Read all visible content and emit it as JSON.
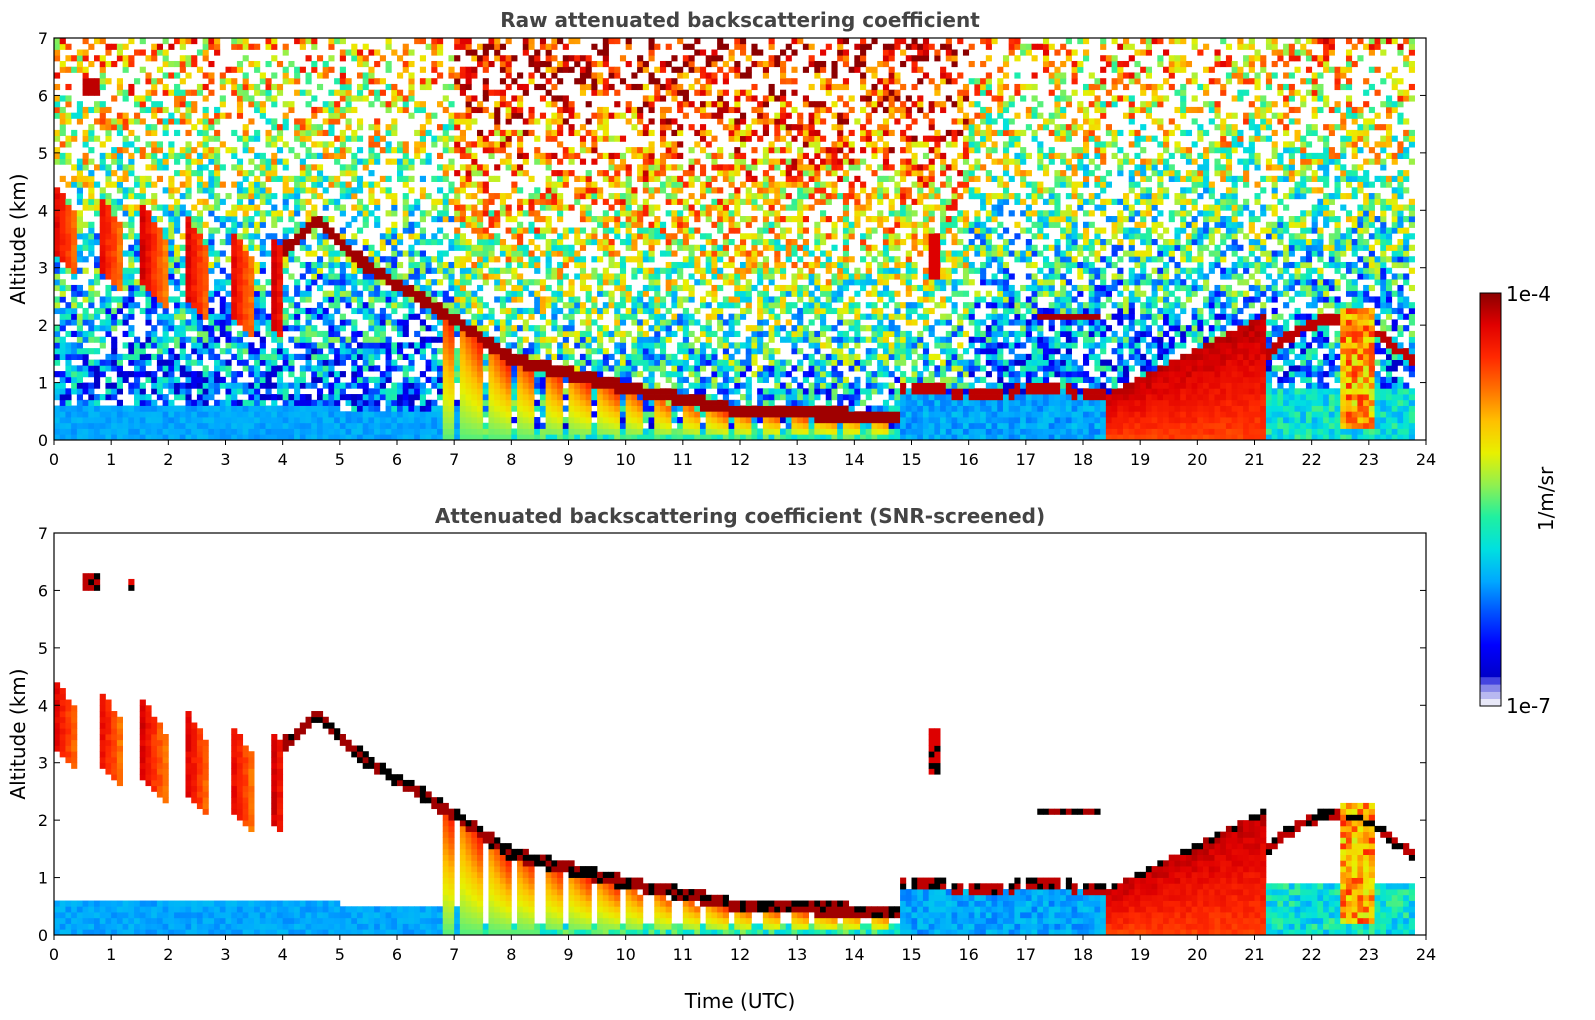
{
  "colors": {
    "colormap": [
      "#0000c8",
      "#0000ff",
      "#0050ff",
      "#00a8ff",
      "#00e0e0",
      "#20f0a0",
      "#90f050",
      "#e8f000",
      "#ffc000",
      "#ff7000",
      "#ff2800",
      "#e00000",
      "#8c0000"
    ],
    "low_fade": [
      "#e8e8f8",
      "#b8b8f0",
      "#8888e8",
      "#4444e0"
    ],
    "cloud_top_mark": "#000000"
  },
  "chart_data": [
    {
      "type": "heatmap",
      "title": "Raw attenuated backscattering coefficient",
      "xlabel": "",
      "ylabel": "Altitude (km)",
      "xlim": [
        0,
        24
      ],
      "ylim": [
        0,
        7
      ],
      "x_ticks": [
        "0",
        "1",
        "2",
        "3",
        "4",
        "5",
        "6",
        "7",
        "8",
        "9",
        "10",
        "11",
        "12",
        "13",
        "14",
        "15",
        "16",
        "17",
        "18",
        "19",
        "20",
        "21",
        "22",
        "23",
        "24"
      ],
      "y_ticks": [
        "0",
        "1",
        "2",
        "3",
        "4",
        "5",
        "6",
        "7"
      ],
      "features": [
        {
          "kind": "noise_background",
          "x_range": [
            0,
            23.8
          ],
          "y_range": [
            0,
            7
          ]
        },
        {
          "kind": "boundary_layer",
          "x_range": [
            0,
            7.3
          ],
          "top_km": 0.6
        },
        {
          "kind": "cloud_streaks",
          "x_range": [
            0,
            4
          ],
          "top_km": [
            4.5,
            3.5
          ],
          "base_km": [
            3.2,
            1.8
          ]
        },
        {
          "kind": "descending_cloud_layer",
          "points": [
            [
              4,
              3.3
            ],
            [
              4.6,
              3.8
            ],
            [
              5.5,
              3.0
            ],
            [
              7,
              2.1
            ],
            [
              8,
              1.4
            ],
            [
              10,
              0.9
            ],
            [
              12,
              0.5
            ],
            [
              14.7,
              0.4
            ]
          ]
        },
        {
          "kind": "cloud_layer",
          "x_range": [
            14.8,
            18.4
          ],
          "height_km": 0.9
        },
        {
          "kind": "cloud_layer",
          "x_range": [
            17.2,
            18.3
          ],
          "height_km": 2.15
        },
        {
          "kind": "precipitation",
          "x_range": [
            18.4,
            21.2
          ],
          "top_km": [
            0.8,
            2.2
          ]
        },
        {
          "kind": "cloud_layer",
          "x_range": [
            21.2,
            23.8
          ],
          "height_km": [
            1.5,
            2.3
          ]
        }
      ]
    },
    {
      "type": "heatmap",
      "title": "Attenuated backscattering coefficient (SNR-screened)",
      "xlabel": "Time (UTC)",
      "ylabel": "Altitude (km)",
      "xlim": [
        0,
        24
      ],
      "ylim": [
        0,
        7
      ],
      "x_ticks": [
        "0",
        "1",
        "2",
        "3",
        "4",
        "5",
        "6",
        "7",
        "8",
        "9",
        "10",
        "11",
        "12",
        "13",
        "14",
        "15",
        "16",
        "17",
        "18",
        "19",
        "20",
        "21",
        "22",
        "23",
        "24"
      ],
      "y_ticks": [
        "0",
        "1",
        "2",
        "3",
        "4",
        "5",
        "6",
        "7"
      ],
      "screened": true
    }
  ],
  "colorbar": {
    "max_label": "1e-4",
    "min_label": "1e-7",
    "unit_label": "1/m/sr",
    "vmin": 1e-07,
    "vmax": 0.0001,
    "scale": "log"
  }
}
